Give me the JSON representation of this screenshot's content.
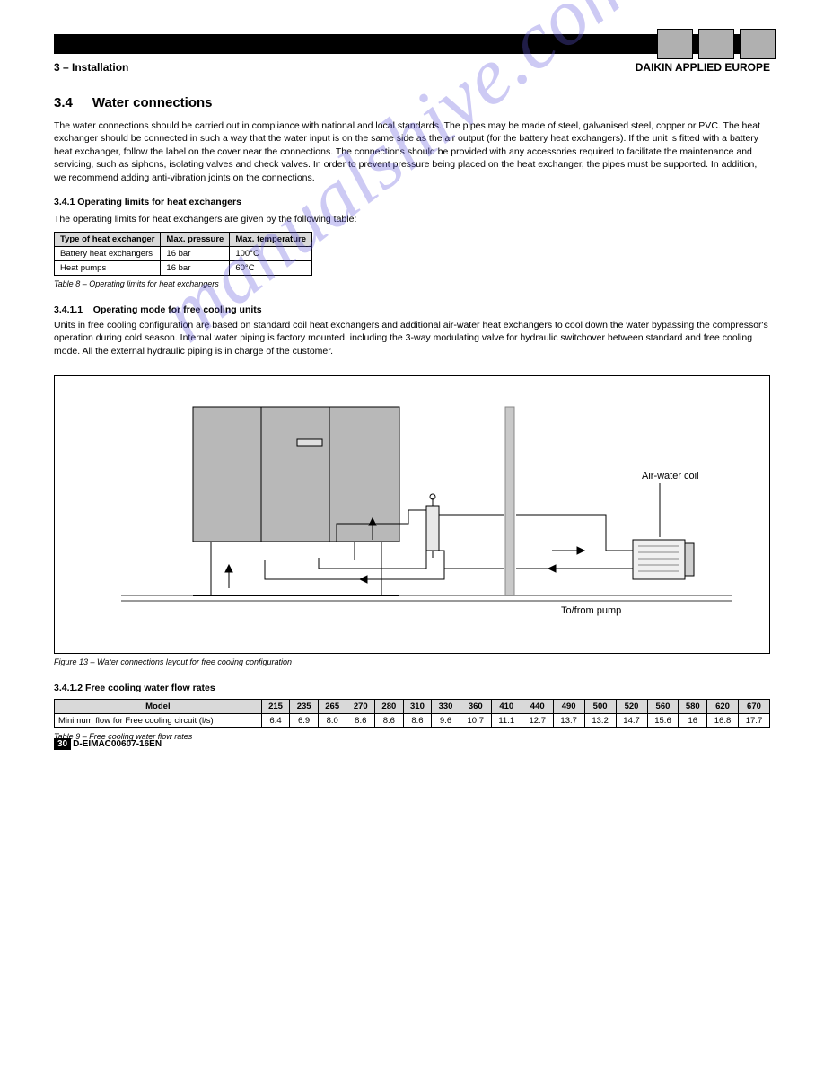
{
  "header": {
    "left": "3 – Installation",
    "right": "DAIKIN APPLIED EUROPE"
  },
  "section": {
    "number": "3.4",
    "title": "Water connections"
  },
  "intro": [
    "The water connections should be carried out in compliance with national and local standards. The pipes may be made of steel, galvanised steel, copper or PVC. The heat exchanger should be connected in such a way that the water input is on the same side as the air output (for the battery heat exchangers). If the unit is fitted with a battery heat exchanger, follow the label on the cover near the connections. The connections should be provided with any accessories required to facilitate the maintenance and servicing, such as siphons, isolating valves and check valves. In order to prevent pressure being placed on the heat exchanger, the pipes must be supported. In addition, we recommend adding anti-vibration joints on the connections."
  ],
  "limits_heading": "3.4.1   Operating limits for heat exchangers",
  "limits_text": "The operating limits for heat exchangers are given by the following table:",
  "table1": {
    "headers": [
      "Type of heat exchanger",
      "Max. pressure",
      "Max. temperature"
    ],
    "rows": [
      [
        "Battery heat exchangers",
        "16 bar",
        "100°C"
      ],
      [
        "Heat pumps",
        "16 bar",
        "60°C"
      ]
    ],
    "caption": "Table 8 – Operating limits for heat exchangers"
  },
  "subsection": {
    "heading": "3.4.1.1",
    "title": "Operating mode for free cooling units",
    "text": "Units in free cooling configuration are based on standard coil heat exchangers and additional air-water heat exchangers to cool down the water bypassing the compressor's operation during cold season. Internal water piping is factory mounted, including the 3-way modulating valve for hydraulic switchover between standard and free cooling mode. All the external hydraulic piping is in charge of the customer."
  },
  "figure": {
    "caption": "Figure 13 – Water connections layout for free cooling configuration",
    "label_coil": "Air-water coil",
    "label_pump": "To/from pump",
    "arrows": [
      "up",
      "up",
      "left",
      "right",
      "left"
    ]
  },
  "table2": {
    "heading": "3.4.1.2   Free cooling water flow rates",
    "headers": [
      "Model",
      "215",
      "235",
      "265",
      "270",
      "280",
      "310",
      "330",
      "360",
      "410",
      "440",
      "490",
      "500",
      "520",
      "560",
      "580",
      "620",
      "670"
    ],
    "row_label": "Minimum flow for Free cooling circuit (l/s)",
    "row": [
      "6.4",
      "6.9",
      "8.0",
      "8.6",
      "8.6",
      "8.6",
      "9.6",
      "10.7",
      "11.1",
      "12.7",
      "13.7",
      "13.2",
      "14.7",
      "15.6",
      "16",
      "16.8",
      "17.7"
    ],
    "caption": "Table 9 – Free cooling water flow rates"
  },
  "page_number": "30",
  "doc_ref": "D-EIMAC00607-16EN",
  "watermark_text": "manualshive.com"
}
